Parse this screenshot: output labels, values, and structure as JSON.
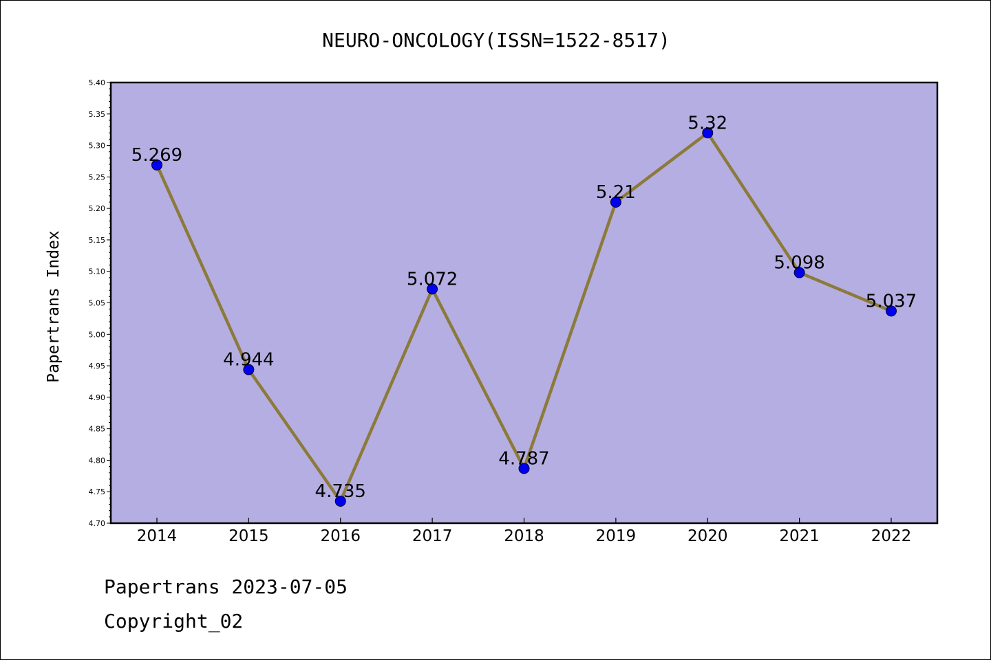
{
  "chart_data": {
    "type": "line",
    "title": "NEURO-ONCOLOGY(ISSN=1522-8517)",
    "xlabel": "",
    "ylabel": "Papertrans Index",
    "categories": [
      "2014",
      "2015",
      "2016",
      "2017",
      "2018",
      "2019",
      "2020",
      "2021",
      "2022"
    ],
    "series": [
      {
        "values": [
          5.269,
          4.944,
          4.735,
          5.072,
          4.787,
          5.21,
          5.32,
          5.098,
          5.037
        ],
        "data_labels": [
          "5.269",
          "4.944",
          "4.735",
          "5.072",
          "4.787",
          "5.21",
          "5.32",
          "5.098",
          "5.037"
        ],
        "line_color": "#8b7a3a",
        "marker_color": "#0000ee"
      }
    ],
    "ylim": [
      4.7,
      5.4
    ],
    "yticks": [
      "4.70",
      "4.75",
      "4.80",
      "4.85",
      "4.90",
      "4.95",
      "5.00",
      "5.05",
      "5.10",
      "5.15",
      "5.20",
      "5.25",
      "5.30",
      "5.35",
      "5.40"
    ],
    "grid": false,
    "legend": "none",
    "plot_background": "#b5aee2"
  },
  "footer": {
    "date_line": "Papertrans 2023-07-05",
    "copyright_line": "Copyright_02"
  }
}
